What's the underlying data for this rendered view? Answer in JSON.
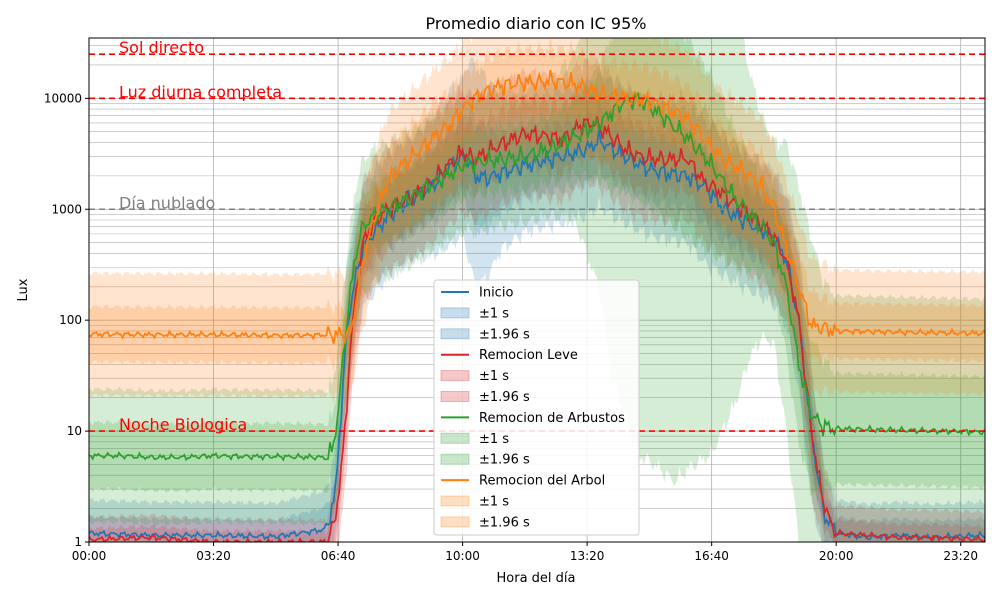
{
  "chart_data": {
    "type": "line",
    "title": "Promedio diario con IC 95%",
    "xlabel": "Hora del día",
    "ylabel": "Lux",
    "xlim": [
      0,
      1439
    ],
    "ylim": [
      1,
      35000
    ],
    "yscale": "log",
    "grid": true,
    "legend_position": "center",
    "x_ticks": [
      {
        "value": 0,
        "label": "00:00"
      },
      {
        "value": 200,
        "label": "03:20"
      },
      {
        "value": 400,
        "label": "06:40"
      },
      {
        "value": 600,
        "label": "10:00"
      },
      {
        "value": 800,
        "label": "13:20"
      },
      {
        "value": 1000,
        "label": "16:40"
      },
      {
        "value": 1200,
        "label": "20:00"
      },
      {
        "value": 1400,
        "label": "23:20"
      }
    ],
    "y_ticks": [
      {
        "value": 1,
        "label": "1"
      },
      {
        "value": 10,
        "label": "10"
      },
      {
        "value": 100,
        "label": "100"
      },
      {
        "value": 1000,
        "label": "1000"
      },
      {
        "value": 10000,
        "label": "10000"
      }
    ],
    "reference_lines": [
      {
        "value": 25000,
        "label": "Sol directo",
        "color": "#ff0000"
      },
      {
        "value": 10000,
        "label": "Luz diurna completa",
        "color": "#ff0000"
      },
      {
        "value": 1000,
        "label": "Día nublado",
        "color": "#808080"
      },
      {
        "value": 10,
        "label": "Noche Biologica",
        "color": "#ff0000"
      }
    ],
    "band_labels": [
      "±1 s",
      "±1.96 s"
    ],
    "series": [
      {
        "name": "Inicio",
        "color": "#1f77b4",
        "x": [
          0,
          100,
          200,
          300,
          380,
          395,
          405,
          415,
          425,
          440,
          460,
          480,
          500,
          520,
          540,
          560,
          580,
          600,
          610,
          620,
          640,
          660,
          700,
          760,
          800,
          820,
          840,
          870,
          900,
          930,
          960,
          990,
          1020,
          1050,
          1080,
          1100,
          1120,
          1140,
          1160,
          1180,
          1200,
          1250,
          1300,
          1350,
          1439
        ],
        "values": [
          1.2,
          1.15,
          1.15,
          1.12,
          1.3,
          2.5,
          15,
          90,
          200,
          450,
          650,
          850,
          1050,
          1250,
          1500,
          1800,
          2400,
          3000,
          2800,
          2000,
          1900,
          2100,
          2500,
          3000,
          3500,
          4200,
          3500,
          2800,
          2300,
          2100,
          2000,
          1600,
          1000,
          800,
          650,
          550,
          350,
          100,
          10,
          1.8,
          1.2,
          1.1,
          1.15,
          1.1,
          1.15
        ],
        "sd1": [
          0.15,
          0.15,
          0.15,
          0.15,
          0.2,
          0.2,
          0.25,
          0.3,
          0.3,
          0.3,
          0.3,
          0.3,
          0.3,
          0.3,
          0.3,
          0.35,
          0.35,
          0.35,
          0.45,
          0.5,
          0.45,
          0.35,
          0.3,
          0.3,
          0.3,
          0.3,
          0.3,
          0.3,
          0.3,
          0.3,
          0.3,
          0.35,
          0.3,
          0.3,
          0.3,
          0.3,
          0.3,
          0.35,
          0.3,
          0.2,
          0.15,
          0.15,
          0.15,
          0.15,
          0.15
        ],
        "sd2": [
          0.3,
          0.3,
          0.3,
          0.3,
          0.35,
          0.4,
          0.5,
          0.6,
          0.6,
          0.55,
          0.55,
          0.55,
          0.55,
          0.55,
          0.6,
          0.65,
          0.7,
          0.7,
          0.9,
          1.0,
          0.9,
          0.7,
          0.6,
          0.6,
          0.6,
          0.6,
          0.6,
          0.6,
          0.6,
          0.6,
          0.6,
          0.7,
          0.6,
          0.6,
          0.6,
          0.6,
          0.6,
          0.65,
          0.6,
          0.4,
          0.3,
          0.3,
          0.3,
          0.3,
          0.3
        ]
      },
      {
        "name": "Remocion Leve",
        "color": "#d62728",
        "x": [
          0,
          100,
          200,
          300,
          380,
          395,
          410,
          420,
          430,
          440,
          460,
          480,
          500,
          520,
          540,
          560,
          580,
          600,
          610,
          620,
          640,
          660,
          700,
          740,
          760,
          790,
          810,
          830,
          860,
          890,
          930,
          960,
          990,
          1010,
          1030,
          1060,
          1080,
          1100,
          1120,
          1140,
          1160,
          1175,
          1190,
          1200,
          1250,
          1300,
          1350,
          1439
        ],
        "values": [
          1.05,
          1.1,
          1.0,
          1.0,
          1.0,
          1.5,
          8,
          60,
          200,
          500,
          800,
          1000,
          1150,
          1300,
          1600,
          2000,
          2600,
          3300,
          3000,
          2800,
          3300,
          3800,
          4800,
          4500,
          4200,
          5800,
          6000,
          5000,
          3500,
          2900,
          2800,
          2900,
          1700,
          1500,
          1200,
          900,
          750,
          550,
          350,
          100,
          10,
          3,
          1.5,
          1.2,
          1.15,
          1.1,
          1.1,
          1.05
        ],
        "sd1": [
          0.1,
          0.1,
          0.1,
          0.1,
          0.1,
          0.2,
          0.3,
          0.3,
          0.3,
          0.3,
          0.3,
          0.3,
          0.3,
          0.3,
          0.3,
          0.3,
          0.3,
          0.3,
          0.3,
          0.3,
          0.3,
          0.3,
          0.3,
          0.3,
          0.3,
          0.3,
          0.3,
          0.3,
          0.3,
          0.3,
          0.3,
          0.3,
          0.3,
          0.3,
          0.3,
          0.3,
          0.3,
          0.3,
          0.3,
          0.3,
          0.3,
          0.25,
          0.15,
          0.12,
          0.12,
          0.12,
          0.12,
          0.12
        ],
        "sd2": [
          0.2,
          0.2,
          0.2,
          0.2,
          0.2,
          0.35,
          0.55,
          0.55,
          0.55,
          0.55,
          0.55,
          0.55,
          0.55,
          0.55,
          0.55,
          0.55,
          0.55,
          0.55,
          0.55,
          0.55,
          0.55,
          0.55,
          0.55,
          0.55,
          0.55,
          0.55,
          0.55,
          0.55,
          0.55,
          0.55,
          0.55,
          0.55,
          0.55,
          0.55,
          0.55,
          0.55,
          0.55,
          0.55,
          0.55,
          0.55,
          0.55,
          0.45,
          0.3,
          0.25,
          0.25,
          0.25,
          0.25,
          0.25
        ]
      },
      {
        "name": "Remocion de Arbustos",
        "color": "#2ca02c",
        "x": [
          0,
          50,
          100,
          150,
          200,
          250,
          300,
          380,
          390,
          400,
          410,
          420,
          430,
          440,
          460,
          480,
          500,
          520,
          540,
          560,
          580,
          600,
          630,
          660,
          700,
          740,
          780,
          820,
          840,
          860,
          880,
          900,
          920,
          940,
          960,
          1000,
          1040,
          1060,
          1080,
          1100,
          1120,
          1140,
          1160,
          1180,
          1200,
          1300,
          1439
        ],
        "values": [
          6,
          6,
          5.8,
          5.8,
          6,
          5.9,
          5.9,
          5.8,
          6.5,
          14,
          60,
          180,
          450,
          700,
          900,
          1000,
          1150,
          1300,
          1550,
          1800,
          2100,
          2500,
          2700,
          2800,
          3000,
          3500,
          4500,
          6000,
          7500,
          9500,
          9800,
          8500,
          7000,
          5500,
          4500,
          2500,
          1200,
          900,
          700,
          500,
          200,
          40,
          14,
          11,
          10.5,
          10.2,
          9.8
        ],
        "sd1": [
          0.3,
          0.3,
          0.3,
          0.3,
          0.3,
          0.3,
          0.3,
          0.3,
          0.3,
          0.3,
          0.3,
          0.3,
          0.3,
          0.3,
          0.3,
          0.3,
          0.3,
          0.3,
          0.3,
          0.3,
          0.3,
          0.3,
          0.3,
          0.3,
          0.3,
          0.3,
          0.35,
          0.5,
          0.7,
          0.8,
          0.9,
          0.9,
          0.9,
          0.9,
          0.9,
          0.8,
          0.6,
          0.5,
          0.45,
          0.45,
          0.6,
          0.7,
          0.7,
          0.6,
          0.5,
          0.5,
          0.5
        ],
        "sd2": [
          0.6,
          0.6,
          0.6,
          0.6,
          0.6,
          0.6,
          0.6,
          0.6,
          0.6,
          0.6,
          0.6,
          0.6,
          0.6,
          0.6,
          0.6,
          0.6,
          0.6,
          0.6,
          0.6,
          0.6,
          0.6,
          0.6,
          0.6,
          0.6,
          0.6,
          0.6,
          0.75,
          1.5,
          2.4,
          2.8,
          3.2,
          3.2,
          3.2,
          3.2,
          3.0,
          2.6,
          1.8,
          1.3,
          1.0,
          0.9,
          1.3,
          1.6,
          1.6,
          1.3,
          1.2,
          1.2,
          1.2
        ]
      },
      {
        "name": "Remocion del Arbol",
        "color": "#ff7f0e",
        "x": [
          0,
          100,
          200,
          300,
          350,
          420,
          440,
          460,
          480,
          500,
          520,
          540,
          560,
          580,
          600,
          620,
          640,
          660,
          680,
          700,
          720,
          740,
          760,
          780,
          800,
          820,
          840,
          860,
          880,
          900,
          920,
          940,
          960,
          980,
          1000,
          1020,
          1040,
          1060,
          1080,
          1100,
          1120,
          1140,
          1160,
          1200,
          1300,
          1439
        ],
        "values": [
          75,
          74,
          74,
          73,
          73,
          75,
          350,
          900,
          1800,
          2400,
          3000,
          3800,
          4800,
          5800,
          8000,
          10000,
          11500,
          13000,
          13500,
          14000,
          13800,
          14500,
          14000,
          13500,
          12000,
          11000,
          10500,
          10000,
          10000,
          9500,
          8500,
          7500,
          6500,
          5000,
          3500,
          2800,
          2400,
          2000,
          1600,
          1000,
          450,
          200,
          90,
          80,
          78,
          76
        ],
        "sd1": [
          0.25,
          0.25,
          0.25,
          0.25,
          0.25,
          0.25,
          0.3,
          0.3,
          0.3,
          0.3,
          0.3,
          0.3,
          0.3,
          0.3,
          0.3,
          0.3,
          0.3,
          0.3,
          0.3,
          0.3,
          0.3,
          0.3,
          0.3,
          0.3,
          0.3,
          0.3,
          0.3,
          0.3,
          0.3,
          0.3,
          0.3,
          0.3,
          0.3,
          0.3,
          0.3,
          0.3,
          0.3,
          0.3,
          0.3,
          0.3,
          0.3,
          0.3,
          0.3,
          0.25,
          0.25,
          0.25
        ],
        "sd2": [
          0.55,
          0.55,
          0.55,
          0.55,
          0.55,
          0.55,
          0.6,
          0.6,
          0.6,
          0.6,
          0.6,
          0.6,
          0.6,
          0.6,
          0.6,
          0.6,
          0.6,
          0.6,
          0.6,
          0.6,
          0.6,
          0.6,
          0.6,
          0.6,
          0.6,
          0.6,
          0.6,
          0.6,
          0.6,
          0.6,
          0.6,
          0.6,
          0.6,
          0.6,
          0.6,
          0.6,
          0.6,
          0.6,
          0.6,
          0.6,
          0.6,
          0.6,
          0.6,
          0.55,
          0.55,
          0.55
        ]
      }
    ]
  }
}
